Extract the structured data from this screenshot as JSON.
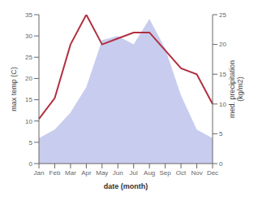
{
  "chart_data": {
    "type": "line",
    "categories": [
      "Jan",
      "Feb",
      "Mar",
      "Apr",
      "May",
      "Jun",
      "Jul",
      "Aug",
      "Sep",
      "Oct",
      "Nov",
      "Dec"
    ],
    "series": [
      {
        "type": "area",
        "color": "#b0b8e8",
        "values": [
          6,
          8,
          12,
          18,
          29,
          30,
          28,
          34,
          27,
          16,
          8,
          6
        ]
      },
      {
        "type": "line",
        "color": "#b03040",
        "axis": "y2",
        "values": [
          7.5,
          11,
          20,
          25,
          20,
          21,
          22,
          22,
          19,
          16,
          15,
          10
        ]
      }
    ],
    "xlabel": "date (month)",
    "ylabel": "max temp (C)",
    "y2label": "med. precipitation\n(kg/m2)",
    "ylim": [
      0,
      35
    ],
    "yticks": [
      0,
      5,
      10,
      15,
      20,
      25,
      30,
      35
    ],
    "y2lim": [
      0,
      25
    ],
    "y2ticks": [
      0,
      5,
      10,
      15,
      20,
      25
    ],
    "grid": false
  }
}
